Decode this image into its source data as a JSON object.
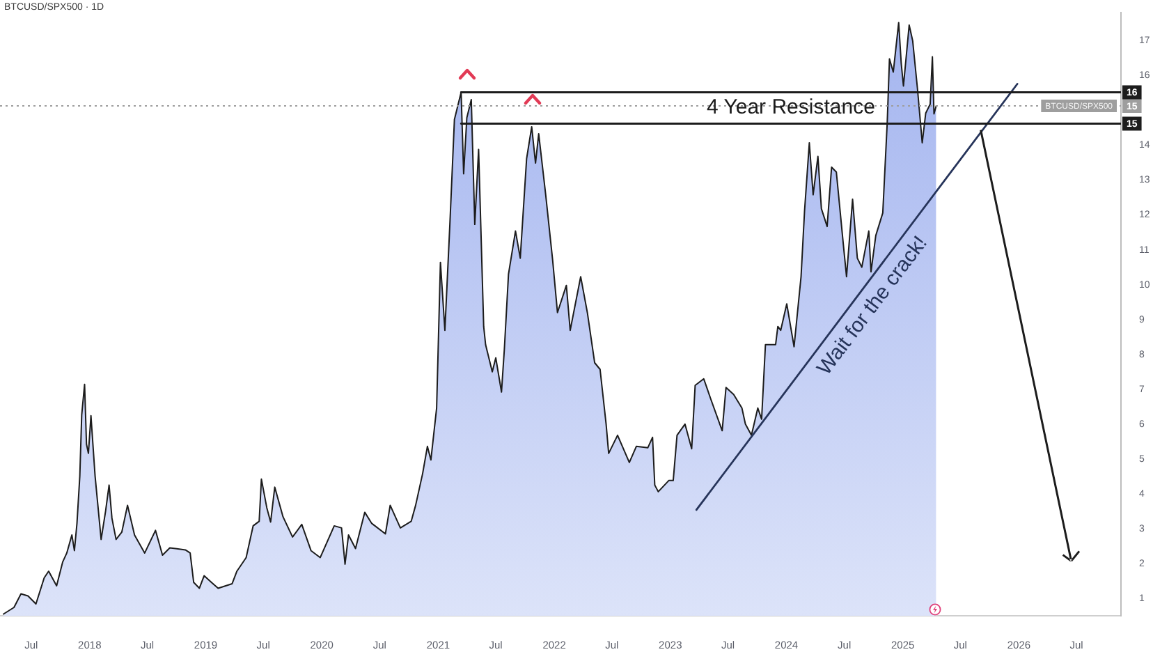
{
  "chart_data": {
    "type": "area",
    "title": "BTCUSD/SPX500 · 1D",
    "x": [
      "2017-04-05",
      "2017-05-08",
      "2017-05-30",
      "2017-06-21",
      "2017-07-16",
      "2017-08-11",
      "2017-08-25",
      "2017-09-19",
      "2017-10-08",
      "2017-10-21",
      "2017-11-06",
      "2017-11-14",
      "2017-11-22",
      "2017-12-01",
      "2017-12-07",
      "2017-12-16",
      "2017-12-22",
      "2017-12-28",
      "2018-01-05",
      "2018-01-18",
      "2018-02-06",
      "2018-02-20",
      "2018-03-03",
      "2018-03-12",
      "2018-03-25",
      "2018-04-12",
      "2018-04-30",
      "2018-05-22",
      "2018-06-23",
      "2018-07-27",
      "2018-08-18",
      "2018-09-10",
      "2018-10-29",
      "2018-11-13",
      "2018-11-24",
      "2018-12-12",
      "2018-12-27",
      "2019-01-20",
      "2019-02-09",
      "2019-03-25",
      "2019-04-09",
      "2019-05-08",
      "2019-05-30",
      "2019-06-18",
      "2019-06-25",
      "2019-07-12",
      "2019-07-24",
      "2019-08-06",
      "2019-09-01",
      "2019-10-01",
      "2019-10-30",
      "2019-11-28",
      "2019-12-27",
      "2020-02-09",
      "2020-03-03",
      "2020-03-14",
      "2020-03-25",
      "2020-04-16",
      "2020-05-15",
      "2020-06-06",
      "2020-07-19",
      "2020-08-03",
      "2020-09-04",
      "2020-10-08",
      "2020-10-22",
      "2020-11-13",
      "2020-11-28",
      "2020-12-09",
      "2020-12-27",
      "2021-01-08",
      "2021-01-22",
      "2021-02-07",
      "2021-02-21",
      "2021-03-14",
      "2021-03-22",
      "2021-04-01",
      "2021-04-15",
      "2021-04-26",
      "2021-05-08",
      "2021-05-24",
      "2021-05-30",
      "2021-06-20",
      "2021-07-01",
      "2021-07-19",
      "2021-07-28",
      "2021-08-10",
      "2021-09-01",
      "2021-09-16",
      "2021-10-06",
      "2021-10-22",
      "2021-11-03",
      "2021-11-13",
      "2021-12-05",
      "2021-12-27",
      "2022-01-11",
      "2022-02-08",
      "2022-02-20",
      "2022-03-25",
      "2022-04-15",
      "2022-05-08",
      "2022-05-25",
      "2022-06-13",
      "2022-06-21",
      "2022-07-19",
      "2022-08-25",
      "2022-09-16",
      "2022-10-22",
      "2022-11-06",
      "2022-11-13",
      "2022-11-24",
      "2022-12-27",
      "2023-01-10",
      "2023-01-22",
      "2023-02-16",
      "2023-03-09",
      "2023-03-20",
      "2023-04-16",
      "2023-05-08",
      "2023-06-13",
      "2023-06-25",
      "2023-07-19",
      "2023-08-14",
      "2023-08-25",
      "2023-09-13",
      "2023-10-03",
      "2023-10-15",
      "2023-10-27",
      "2023-11-28",
      "2023-12-05",
      "2023-12-14",
      "2024-01-02",
      "2024-01-25",
      "2024-02-16",
      "2024-02-27",
      "2024-03-13",
      "2024-03-25",
      "2024-04-09",
      "2024-04-20",
      "2024-05-08",
      "2024-05-22",
      "2024-06-06",
      "2024-06-28",
      "2024-07-08",
      "2024-07-27",
      "2024-08-11",
      "2024-08-25",
      "2024-09-16",
      "2024-09-23",
      "2024-10-08",
      "2024-10-30",
      "2024-11-13",
      "2024-11-20",
      "2024-12-02",
      "2024-12-19",
      "2024-12-27",
      "2025-01-03",
      "2025-01-21",
      "2025-02-01",
      "2025-02-16",
      "2025-03-03",
      "2025-03-14",
      "2025-03-28",
      "2025-04-04",
      "2025-04-09",
      "2025-04-16"
    ],
    "series": [
      {
        "color": "#a3b4ef",
        "values": [
          0.55,
          0.74,
          1.13,
          1.07,
          0.84,
          1.59,
          1.78,
          1.36,
          2.04,
          2.3,
          2.82,
          2.37,
          3.15,
          4.51,
          6.27,
          7.14,
          5.42,
          5.16,
          6.24,
          4.51,
          2.69,
          3.5,
          4.25,
          3.3,
          2.69,
          2.9,
          3.67,
          2.82,
          2.3,
          2.95,
          2.24,
          2.45,
          2.39,
          2.3,
          1.46,
          1.29,
          1.65,
          1.45,
          1.29,
          1.42,
          1.78,
          2.17,
          3.08,
          3.21,
          4.42,
          3.6,
          3.19,
          4.19,
          3.34,
          2.76,
          3.12,
          2.37,
          2.17,
          3.08,
          3.02,
          1.98,
          2.82,
          2.43,
          3.47,
          3.15,
          2.85,
          3.67,
          3.02,
          3.21,
          3.67,
          4.58,
          5.36,
          4.97,
          6.46,
          10.64,
          8.69,
          11.8,
          14.74,
          15.52,
          13.18,
          14.79,
          15.31,
          11.73,
          13.88,
          8.8,
          8.28,
          7.5,
          7.9,
          6.92,
          8.15,
          10.3,
          11.54,
          10.76,
          13.62,
          14.53,
          13.49,
          14.33,
          12.58,
          10.69,
          9.2,
          9.98,
          8.69,
          10.23,
          9.2,
          7.76,
          7.57,
          6.0,
          5.16,
          5.68,
          4.9,
          5.36,
          5.32,
          5.62,
          4.25,
          4.06,
          4.38,
          4.38,
          5.68,
          6.0,
          5.29,
          7.11,
          7.3,
          6.72,
          5.81,
          7.05,
          6.85,
          6.46,
          6.0,
          5.68,
          6.46,
          6.14,
          8.28,
          8.28,
          8.8,
          8.69,
          9.45,
          8.22,
          10.23,
          12.12,
          14.07,
          12.58,
          13.68,
          12.18,
          11.67,
          13.37,
          13.23,
          11.15,
          10.23,
          12.45,
          10.76,
          10.5,
          11.54,
          10.37,
          11.41,
          12.06,
          14.66,
          16.48,
          16.1,
          17.52,
          16.35,
          15.7,
          17.45,
          17.0,
          15.63,
          14.07,
          14.92,
          15.18,
          16.54,
          14.9,
          15.13
        ]
      },
      {
        "type": "line",
        "color": "#1c1c1c",
        "x": [
          "2021-03-14",
          "2026-11-18"
        ],
        "values": [
          15.52,
          15.52
        ],
        "value_labels": [
          null,
          "16"
        ]
      },
      {
        "type": "line",
        "color": "#1c1c1c",
        "x": [
          "2021-03-14",
          "2026-11-18"
        ],
        "values": [
          14.62,
          14.62
        ],
        "value_labels": [
          null,
          "15"
        ]
      },
      {
        "type": "line",
        "color": "#26345a",
        "x": [
          "2023-03-24",
          "2025-12-27"
        ],
        "values": [
          3.54,
          15.76
        ]
      }
    ],
    "xlim": [
      "2017-03-25",
      "2026-11-18"
    ],
    "xticks": [
      {
        "value": "2017-07",
        "label": "Jul"
      },
      "2018",
      {
        "value": "2018-07",
        "label": "Jul"
      },
      "2019",
      {
        "value": "2019-07",
        "label": "Jul"
      },
      "2020",
      {
        "value": "2020-07",
        "label": "Jul"
      },
      "2021",
      {
        "value": "2021-07",
        "label": "Jul"
      },
      "2022",
      {
        "value": "2022-07",
        "label": "Jul"
      },
      "2023",
      {
        "value": "2023-07",
        "label": "Jul"
      },
      "2024",
      {
        "value": "2024-07",
        "label": "Jul"
      },
      "2025",
      {
        "value": "2025-07",
        "label": "Jul"
      },
      "2026",
      {
        "value": "2026-07",
        "label": "Jul"
      }
    ],
    "ylim": [
      0.5,
      17.8
    ],
    "yticks": [
      1,
      2,
      3,
      4,
      5,
      6,
      7,
      8,
      9,
      10,
      11,
      12,
      13,
      14,
      16,
      17
    ],
    "ref_lines": [
      {
        "axis": "y",
        "value": 15.13,
        "label": "BTCUSD/SPX500 15",
        "color": "#9e9e9e",
        "line_style": "dotted"
      }
    ],
    "annotations": [
      {
        "text": "4 Year Resistance",
        "x": "2024-01-15",
        "y": 15.07
      },
      {
        "text": "Wait for the crack!",
        "x": "2024-08-14",
        "y": 9.7
      }
    ],
    "marker": "none"
  }
}
